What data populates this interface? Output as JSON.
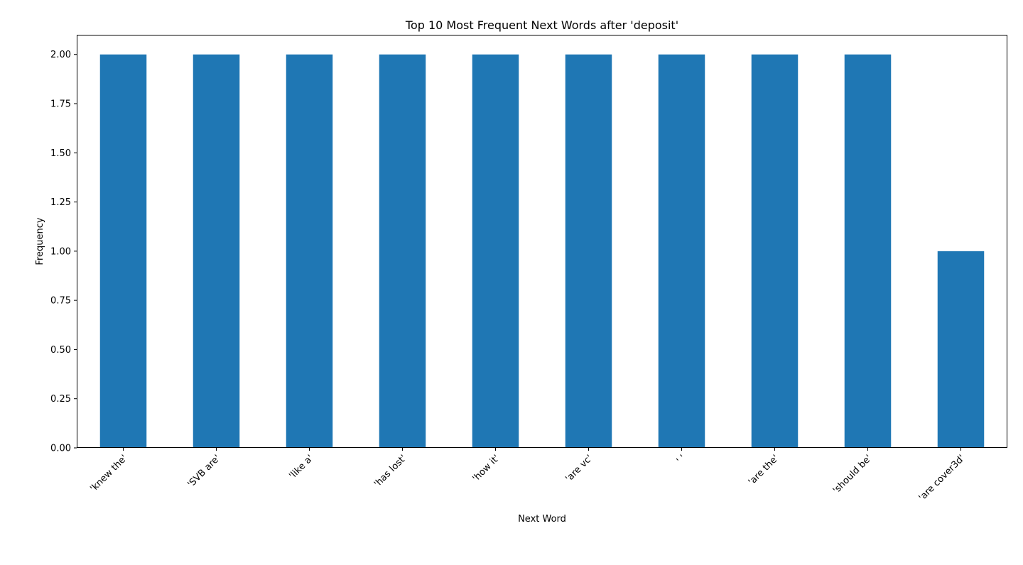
{
  "chart_data": {
    "type": "bar",
    "title": "Top 10 Most Frequent Next Words after 'deposit'",
    "xlabel": "Next Word",
    "ylabel": "Frequency",
    "categories": [
      "'knew the'",
      "'SVB are'",
      "'like a'",
      "'has lost'",
      "'how it'",
      "'are vc'",
      "' '",
      "'are the'",
      "'should be'",
      "'are cover3d'"
    ],
    "values": [
      2,
      2,
      2,
      2,
      2,
      2,
      2,
      2,
      2,
      1
    ],
    "ylim": [
      0,
      2.1
    ],
    "yticks": [
      0.0,
      0.25,
      0.5,
      0.75,
      1.0,
      1.25,
      1.5,
      1.75,
      2.0
    ],
    "ytick_labels": [
      "0.00",
      "0.25",
      "0.50",
      "0.75",
      "1.00",
      "1.25",
      "1.50",
      "1.75",
      "2.00"
    ],
    "grid": false,
    "legend": "none",
    "bar_color": "#1f77b4"
  }
}
